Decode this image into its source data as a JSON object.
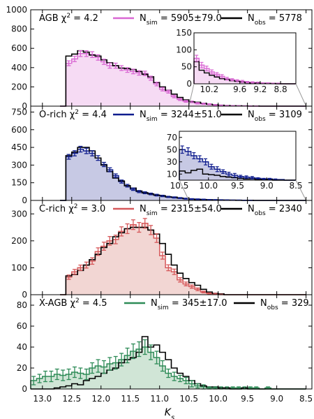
{
  "chart_data": {
    "type": "histogram",
    "xlabel_main": "K",
    "xlabel_sub": "s",
    "x_axis": {
      "reversed": true,
      "ticks": [
        13.0,
        12.5,
        12.0,
        11.5,
        11.0,
        10.5,
        10.0,
        9.5,
        9.0,
        8.5
      ],
      "labels": [
        "13.0",
        "12.5",
        "12.0",
        "11.5",
        "11.0",
        "10.5",
        "10.0",
        "9.5",
        "9.0",
        "8.5"
      ]
    },
    "bin_edges": [
      12.7,
      12.6,
      12.5,
      12.4,
      12.3,
      12.2,
      12.1,
      12.0,
      11.9,
      11.8,
      11.7,
      11.6,
      11.5,
      11.4,
      11.3,
      11.2,
      11.1,
      11.0,
      10.9,
      10.8,
      10.7,
      10.6,
      10.5,
      10.4,
      10.3,
      10.2,
      10.1,
      10.0,
      9.9,
      9.8,
      9.7,
      9.6,
      9.5,
      9.4,
      9.3,
      9.2,
      9.1,
      9.0,
      8.9,
      8.8,
      8.7,
      8.6,
      8.5
    ],
    "panels": [
      {
        "id": "agb",
        "name": "AGB",
        "chi2": "4.2",
        "nsim": "5905±79.0",
        "nobs": "5778",
        "sim_color": "#d967d3",
        "fill_color": "#f6dbf4",
        "ylim": [
          0,
          1000
        ],
        "yticks": [
          0,
          200,
          400,
          600,
          800,
          1000
        ],
        "obs": [
          0,
          520,
          540,
          575,
          560,
          530,
          520,
          480,
          450,
          420,
          395,
          390,
          380,
          360,
          330,
          305,
          245,
          200,
          165,
          125,
          90,
          65,
          45,
          40,
          30,
          20,
          15,
          10,
          6,
          4,
          3,
          2,
          1,
          1,
          0,
          0,
          0,
          0,
          0,
          0,
          0,
          0
        ],
        "sim": [
          0,
          445,
          490,
          545,
          545,
          535,
          505,
          460,
          420,
          420,
          395,
          375,
          360,
          345,
          340,
          290,
          230,
          175,
          150,
          100,
          70,
          50,
          45,
          30,
          25,
          20,
          12,
          8,
          5,
          4,
          3,
          2,
          1,
          1,
          0,
          0,
          0,
          0,
          0,
          0,
          0,
          0
        ],
        "err": [
          0,
          25,
          28,
          30,
          30,
          30,
          28,
          27,
          26,
          26,
          25,
          24,
          24,
          23,
          23,
          21,
          19,
          17,
          15,
          13,
          11,
          9,
          8,
          7,
          6,
          5,
          4,
          3,
          2,
          2,
          2,
          1,
          1,
          1,
          0,
          0,
          0,
          0,
          0,
          0,
          0,
          0
        ],
        "inset": {
          "xlim": [
            10.5,
            8.5
          ],
          "ylim": [
            0,
            150
          ],
          "yticks": [
            0,
            50,
            100,
            150
          ],
          "xticks": [
            10.2,
            9.6,
            9.2,
            8.8
          ],
          "xtick_labels": [
            "10.2",
            "9.6",
            "9.2",
            "8.8"
          ],
          "obs": [
            65,
            40,
            32,
            25,
            20,
            15,
            12,
            9,
            7,
            5,
            3,
            2,
            2,
            1,
            1,
            1,
            0,
            0,
            0,
            0
          ],
          "sim": [
            75,
            55,
            45,
            35,
            28,
            22,
            15,
            12,
            9,
            7,
            5,
            4,
            3,
            2,
            2,
            1,
            1,
            0,
            0,
            0
          ],
          "err": [
            9,
            8,
            7,
            6,
            5,
            5,
            4,
            3,
            3,
            3,
            2,
            2,
            2,
            1,
            1,
            1,
            1,
            0,
            0,
            0
          ]
        }
      },
      {
        "id": "orich",
        "name": "O-rich",
        "chi2": "4.4",
        "nsim": "3244±51.0",
        "nobs": "3109",
        "sim_color": "#0f1d8e",
        "fill_color": "#c7c9e4",
        "ylim": [
          0,
          800
        ],
        "yticks": [
          0,
          150,
          300,
          450,
          600,
          750
        ],
        "obs": [
          0,
          380,
          410,
          450,
          450,
          420,
          360,
          300,
          245,
          190,
          165,
          125,
          105,
          80,
          65,
          55,
          45,
          40,
          30,
          28,
          20,
          15,
          10,
          8,
          6,
          5,
          4,
          3,
          2,
          2,
          1,
          1,
          1,
          0,
          0,
          0,
          0,
          0,
          0,
          0,
          0,
          0
        ],
        "sim": [
          0,
          370,
          400,
          435,
          420,
          400,
          360,
          305,
          260,
          210,
          160,
          125,
          95,
          75,
          65,
          55,
          45,
          38,
          30,
          25,
          20,
          15,
          12,
          10,
          8,
          6,
          5,
          4,
          3,
          2,
          2,
          1,
          1,
          0,
          0,
          0,
          0,
          0,
          0,
          0,
          0,
          0
        ],
        "err": [
          0,
          20,
          22,
          24,
          23,
          22,
          20,
          18,
          17,
          15,
          13,
          11,
          10,
          9,
          8,
          7,
          7,
          6,
          5,
          5,
          4,
          4,
          3,
          3,
          3,
          2,
          2,
          2,
          2,
          1,
          1,
          1,
          1,
          0,
          0,
          0,
          0,
          0,
          0,
          0,
          0,
          0
        ],
        "inset": {
          "xlim": [
            10.5,
            8.5
          ],
          "ylim": [
            0,
            80
          ],
          "yticks": [
            10,
            30,
            50,
            70
          ],
          "xticks": [
            10.5,
            10.0,
            9.5,
            9.0,
            8.5
          ],
          "xtick_labels": [
            "10.5",
            "10.0",
            "9.5",
            "9.0",
            "8.5"
          ],
          "obs": [
            15,
            12,
            16,
            18,
            10,
            9,
            8,
            6,
            5,
            4,
            3,
            2,
            2,
            1,
            1,
            1,
            0,
            0,
            0,
            0
          ],
          "sim": [
            50,
            47,
            40,
            35,
            30,
            22,
            18,
            14,
            10,
            8,
            6,
            5,
            4,
            3,
            2,
            2,
            1,
            1,
            0,
            0
          ],
          "err": [
            6,
            6,
            5,
            5,
            5,
            4,
            4,
            3,
            3,
            3,
            2,
            2,
            2,
            1,
            1,
            1,
            1,
            0,
            0,
            0
          ]
        }
      },
      {
        "id": "crich",
        "name": "C-rich",
        "chi2": "3.0",
        "nsim": "2315±54.0",
        "nobs": "2340",
        "sim_color": "#d6585a",
        "fill_color": "#f2d6d3",
        "ylim": [
          0,
          350
        ],
        "yticks": [
          0,
          100,
          200,
          300
        ],
        "obs": [
          0,
          70,
          75,
          90,
          110,
          130,
          150,
          175,
          190,
          215,
          230,
          245,
          250,
          250,
          250,
          240,
          225,
          190,
          150,
          110,
          80,
          60,
          45,
          35,
          20,
          10,
          5,
          3,
          0,
          0,
          0,
          0,
          0,
          0,
          0,
          0,
          0,
          0,
          0,
          0,
          0,
          0
        ],
        "sim": [
          0,
          65,
          85,
          100,
          110,
          125,
          160,
          180,
          200,
          205,
          235,
          245,
          260,
          250,
          265,
          240,
          210,
          145,
          100,
          85,
          55,
          40,
          30,
          20,
          10,
          5,
          3,
          1,
          0,
          0,
          0,
          0,
          0,
          0,
          0,
          0,
          0,
          0,
          0,
          0,
          0,
          0
        ],
        "err": [
          0,
          8,
          9,
          10,
          11,
          12,
          14,
          15,
          16,
          16,
          17,
          18,
          18,
          18,
          18,
          17,
          16,
          13,
          11,
          10,
          8,
          7,
          6,
          5,
          3,
          2,
          2,
          1,
          0,
          0,
          0,
          0,
          0,
          0,
          0,
          0,
          0,
          0,
          0,
          0,
          0,
          0
        ]
      },
      {
        "id": "xagb",
        "name": "X-AGB",
        "chi2": "4.5",
        "nsim": "345±17.0",
        "nobs": "329",
        "sim_color": "#2e8b57",
        "fill_color": "#d0e5d6",
        "ylim": [
          0,
          90
        ],
        "yticks": [
          0,
          20,
          40,
          60,
          80
        ],
        "x_start": 13.2,
        "bin_edges_override": [
          13.2,
          13.1,
          13.0,
          12.9,
          12.8,
          12.7,
          12.6,
          12.5,
          12.4,
          12.3,
          12.2,
          12.1,
          12.0,
          11.9,
          11.8,
          11.7,
          11.6,
          11.5,
          11.4,
          11.3,
          11.2,
          11.1,
          11.0,
          10.9,
          10.8,
          10.7,
          10.6,
          10.5,
          10.4,
          10.3,
          10.2,
          10.1,
          10.0,
          9.9,
          9.8,
          9.7,
          9.6,
          9.5,
          9.4,
          9.3,
          9.2,
          9.1,
          9.0,
          8.9,
          8.8,
          8.7,
          8.6,
          8.5
        ],
        "obs": [
          0,
          0,
          0,
          0,
          1,
          2,
          3,
          5,
          4,
          8,
          10,
          12,
          15,
          18,
          20,
          25,
          28,
          30,
          35,
          50,
          40,
          42,
          35,
          28,
          20,
          15,
          12,
          8,
          5,
          3,
          2,
          2,
          1,
          1,
          0,
          0,
          1,
          0,
          0,
          0,
          0,
          0,
          0,
          0,
          0,
          0,
          0
        ],
        "sim": [
          8,
          10,
          12,
          12,
          14,
          13,
          14,
          16,
          15,
          14,
          20,
          22,
          21,
          24,
          25,
          28,
          32,
          36,
          38,
          40,
          35,
          30,
          22,
          15,
          12,
          10,
          8,
          5,
          3,
          2,
          1,
          1,
          1,
          1,
          1,
          1,
          1,
          1,
          1,
          0,
          1,
          0,
          0,
          0,
          0,
          0,
          0
        ],
        "err": [
          4,
          4,
          5,
          5,
          5,
          5,
          5,
          5,
          5,
          5,
          5,
          6,
          6,
          6,
          6,
          6,
          7,
          7,
          7,
          7,
          7,
          6,
          5,
          4,
          4,
          3,
          3,
          3,
          2,
          2,
          1,
          1,
          1,
          1,
          1,
          1,
          1,
          1,
          1,
          0,
          1,
          0,
          0,
          0,
          0,
          0,
          0
        ]
      }
    ]
  }
}
